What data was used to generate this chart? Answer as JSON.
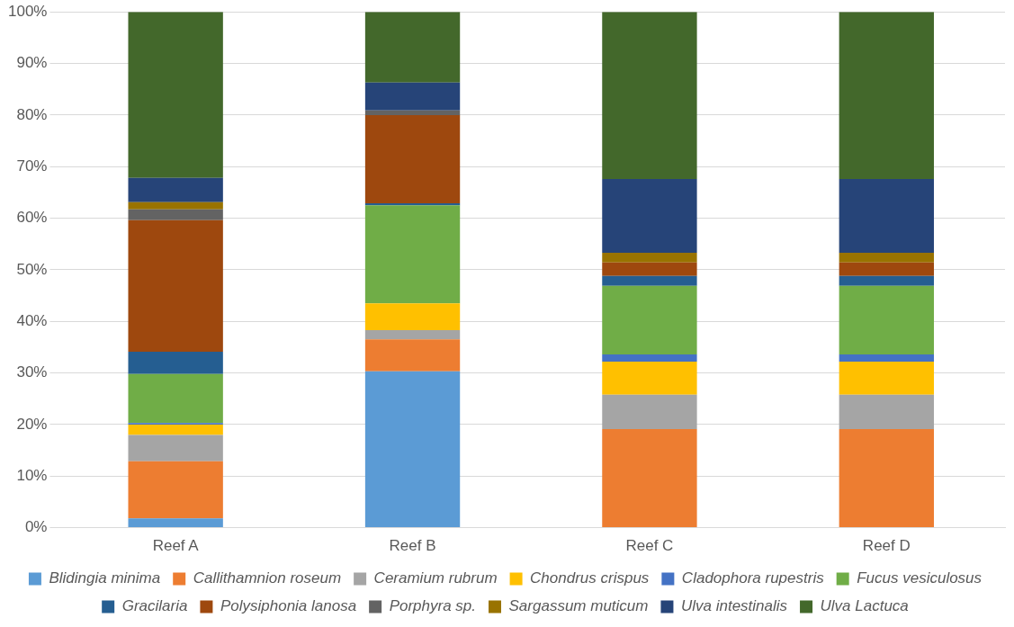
{
  "chart_data": {
    "type": "bar",
    "stacked": true,
    "categories": [
      "Reef A",
      "Reef B",
      "Reef C",
      "Reef D"
    ],
    "ylim": [
      0,
      100
    ],
    "yticks": [
      {
        "value": 0,
        "label": "0%"
      },
      {
        "value": 10,
        "label": "10%"
      },
      {
        "value": 20,
        "label": "20%"
      },
      {
        "value": 30,
        "label": "30%"
      },
      {
        "value": 40,
        "label": "40%"
      },
      {
        "value": 50,
        "label": "50%"
      },
      {
        "value": 60,
        "label": "60%"
      },
      {
        "value": 70,
        "label": "70%"
      },
      {
        "value": 80,
        "label": "80%"
      },
      {
        "value": 90,
        "label": "90%"
      },
      {
        "value": 100,
        "label": "100%"
      }
    ],
    "grid": "y",
    "legend": "bottom",
    "series": [
      {
        "name": "Blidingia minima",
        "color": "#5b9bd5",
        "values": [
          1.8,
          30.3,
          0,
          0
        ]
      },
      {
        "name": "Callithamnion roseum",
        "color": "#ed7d31",
        "values": [
          11.1,
          6.2,
          19.1,
          19.1
        ]
      },
      {
        "name": "Ceramium rubrum",
        "color": "#a5a5a5",
        "values": [
          5.1,
          1.8,
          6.7,
          6.7
        ]
      },
      {
        "name": "Chondrus crispus",
        "color": "#ffc000",
        "values": [
          2.0,
          5.2,
          6.4,
          6.4
        ]
      },
      {
        "name": "Cladophora rupestris",
        "color": "#4472c4",
        "values": [
          0.3,
          0,
          1.4,
          1.4
        ]
      },
      {
        "name": "Fucus vesiculosus",
        "color": "#70ad47",
        "values": [
          9.5,
          19.0,
          13.3,
          13.3
        ]
      },
      {
        "name": "Gracilaria",
        "color": "#255e91",
        "values": [
          4.3,
          0.4,
          1.9,
          1.9
        ]
      },
      {
        "name": "Polysiphonia lanosa",
        "color": "#9e480e",
        "values": [
          25.5,
          17.1,
          2.6,
          2.6
        ]
      },
      {
        "name": "Porphyra sp.",
        "color": "#636363",
        "values": [
          2.1,
          0.9,
          0,
          0
        ]
      },
      {
        "name": "Sargassum muticum",
        "color": "#997300",
        "values": [
          1.4,
          0,
          1.9,
          1.9
        ]
      },
      {
        "name": "Ulva intestinalis",
        "color": "#264478",
        "values": [
          4.7,
          5.4,
          14.3,
          14.3
        ]
      },
      {
        "name": "Ulva Lactuca",
        "color": "#43682b",
        "values": [
          32.2,
          13.7,
          32.4,
          32.4
        ]
      }
    ]
  }
}
